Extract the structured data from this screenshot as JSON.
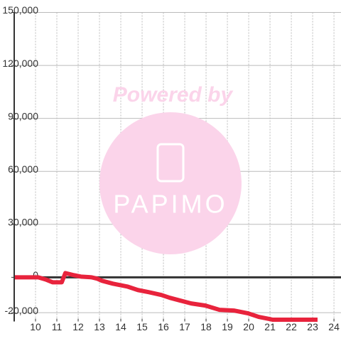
{
  "chart_data": {
    "type": "line",
    "x": [
      9.03,
      10.13,
      10.47,
      10.8,
      11.23,
      11.4,
      11.8,
      12.13,
      12.63,
      12.9,
      13.13,
      13.63,
      14.3,
      14.8,
      15.3,
      15.9,
      16.3,
      16.8,
      17.3,
      17.97,
      18.63,
      19.3,
      19.97,
      20.47,
      21.13,
      21.97,
      23.23
    ],
    "series": [
      {
        "color": "#e8233c",
        "values": [
          0,
          0,
          -1200,
          -2800,
          -2800,
          2400,
          1200,
          400,
          0,
          -800,
          -2000,
          -3600,
          -5200,
          -7200,
          -8400,
          -10000,
          -11600,
          -13200,
          -14800,
          -16000,
          -18400,
          -18800,
          -20400,
          -22400,
          -24000,
          -24000,
          -24000
        ]
      }
    ],
    "xlim": [
      9,
      24.33
    ],
    "xticks": [
      10,
      11,
      12,
      13,
      14,
      15,
      16,
      17,
      18,
      19,
      20,
      21,
      22,
      23,
      24
    ],
    "ylim": [
      -25000,
      150000
    ],
    "yticks": [
      {
        "value": 150000,
        "label": "150,000"
      },
      {
        "value": 120000,
        "label": "120,000"
      },
      {
        "value": 90000,
        "label": "90,000"
      },
      {
        "value": 60000,
        "label": "60,000"
      },
      {
        "value": 30000,
        "label": "30,000"
      },
      0,
      {
        "value": -20000,
        "label": "-20,000"
      }
    ],
    "grid": true,
    "watermark": {
      "text": "Powered by",
      "logo": "PAPIMO"
    }
  }
}
